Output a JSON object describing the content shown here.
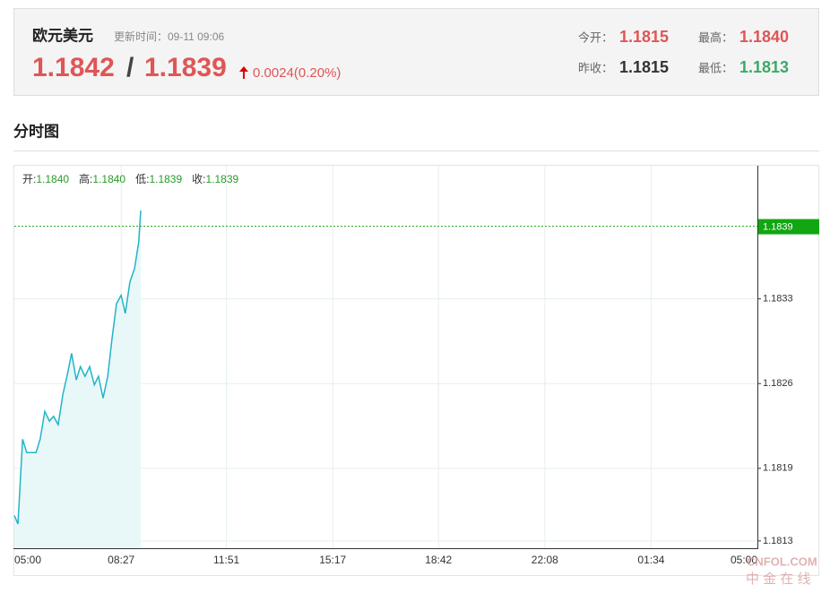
{
  "header": {
    "name": "欧元美元",
    "update_time": "更新时间：09-11 09:06",
    "price": "1.1842",
    "separator": "/",
    "price2": "1.1839",
    "change": "0.0024(0.20%)",
    "open_label": "今开：",
    "open": "1.1815",
    "high_label": "最高：",
    "high": "1.1840",
    "prev_close_label": "昨收：",
    "prev_close": "1.1815",
    "low_label": "最低：",
    "low": "1.1813"
  },
  "section_title": "分时图",
  "watermark": {
    "brand": "CNFOL.COM",
    "cn": "中 金 在 线"
  },
  "chart_data": {
    "type": "line",
    "info": [
      {
        "label": "开:",
        "value": "1.1840"
      },
      {
        "label": "高:",
        "value": "1.1840"
      },
      {
        "label": "低:",
        "value": "1.1839"
      },
      {
        "label": "收:",
        "value": "1.1839"
      }
    ],
    "x": [
      0,
      7,
      16,
      24,
      33,
      42,
      50,
      59,
      68,
      76,
      85,
      94,
      102,
      111,
      120,
      128,
      137,
      146,
      155,
      163,
      172,
      181,
      189,
      198,
      207,
      215,
      224,
      233,
      241,
      245
    ],
    "values": [
      1.18151,
      1.18144,
      1.18214,
      1.18203,
      1.18203,
      1.18203,
      1.18214,
      1.18237,
      1.18229,
      1.18233,
      1.18226,
      1.18251,
      1.18266,
      1.18285,
      1.18263,
      1.18274,
      1.18266,
      1.18274,
      1.18259,
      1.18266,
      1.18248,
      1.18266,
      1.18296,
      1.18326,
      1.18333,
      1.18318,
      1.18344,
      1.18355,
      1.18377,
      1.18403
    ],
    "color": "#22b4c8",
    "fill": "#e8f8f9",
    "last_price": 1.1839,
    "last_price_color": "#12a612",
    "xlim": [
      0,
      1440
    ],
    "xticks": [
      {
        "value": 0,
        "label": "05:00"
      },
      {
        "value": 207,
        "label": "08:27"
      },
      {
        "value": 411,
        "label": "11:51"
      },
      {
        "value": 617,
        "label": "15:17"
      },
      {
        "value": 822,
        "label": "18:42"
      },
      {
        "value": 1028,
        "label": "22:08"
      },
      {
        "value": 1234,
        "label": "01:34"
      },
      {
        "value": 1440,
        "label": "05:00"
      }
    ],
    "ylim": [
      1.18124,
      1.1844
    ],
    "yticks": [
      1.1813,
      1.1819,
      1.1826,
      1.1833
    ],
    "grid": true
  }
}
